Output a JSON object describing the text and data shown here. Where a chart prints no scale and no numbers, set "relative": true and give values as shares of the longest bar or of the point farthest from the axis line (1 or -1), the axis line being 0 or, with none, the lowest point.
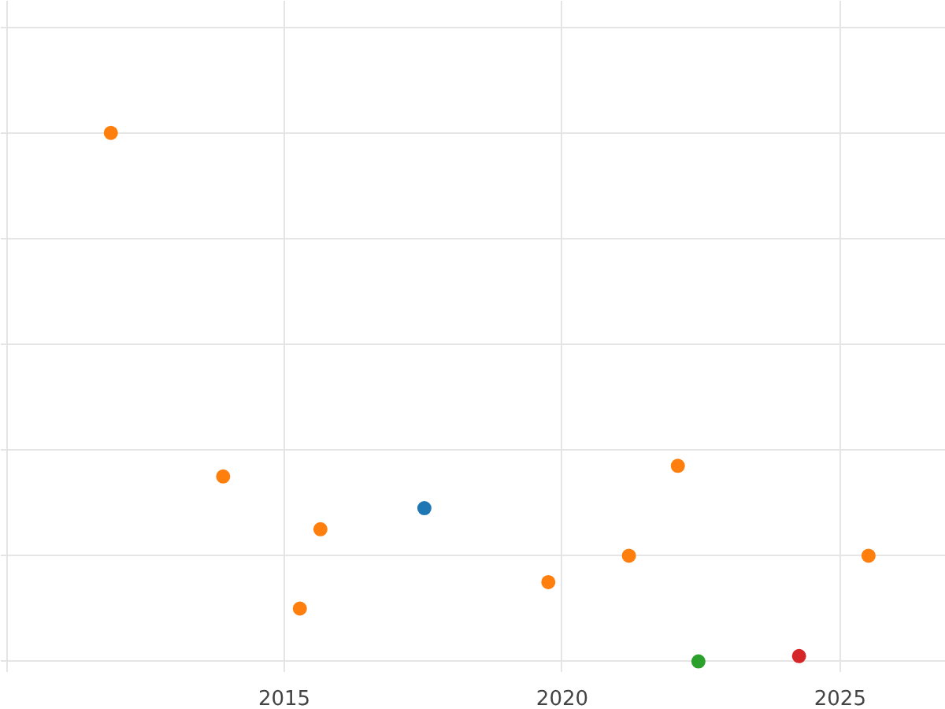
{
  "chart_data": {
    "type": "scatter",
    "relative": true,
    "grid": true,
    "marker": "circle",
    "xlim": [
      2009.9,
      2026.9
    ],
    "xticks": [
      {
        "value": 2010,
        "label": null
      },
      2015,
      2020,
      2025
    ],
    "tick_labels": "x",
    "series": [
      {
        "color": "#ff7f0e",
        "x": [
          2011.88,
          2013.9,
          2015.28,
          2015.65,
          2019.75,
          2021.2,
          2022.08,
          2025.51
        ],
        "values": [
          1,
          0.35,
          0.1,
          0.25,
          0.15,
          0.2,
          0.37,
          0.2
        ]
      },
      {
        "color": "#1f77b4",
        "x": [
          2017.52
        ],
        "values": [
          0.29
        ]
      },
      {
        "color": "#2ca02c",
        "x": [
          2022.45
        ],
        "values": [
          0
        ]
      },
      {
        "color": "#d62728",
        "x": [
          2024.26
        ],
        "values": [
          0.01
        ]
      }
    ]
  }
}
